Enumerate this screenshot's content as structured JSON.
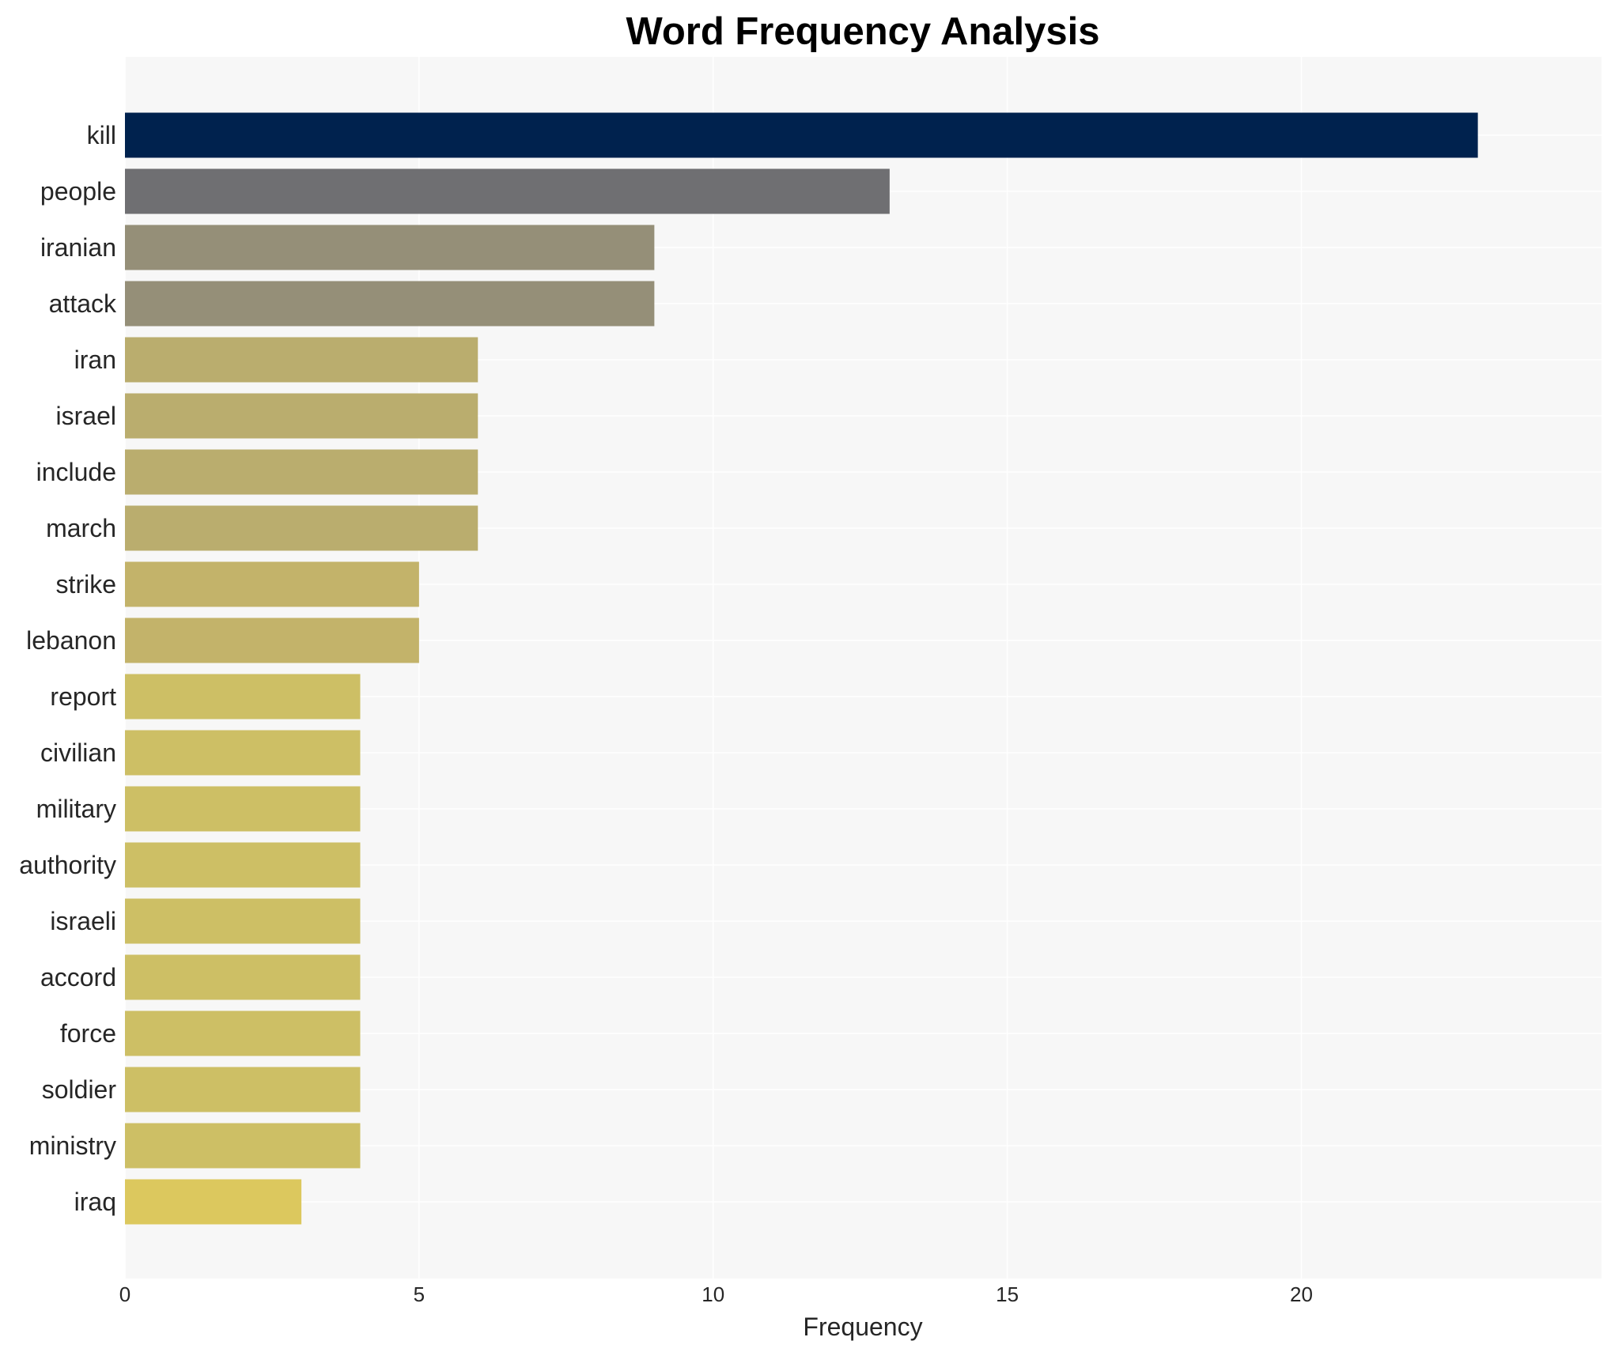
{
  "chart_data": {
    "type": "bar",
    "orientation": "horizontal",
    "title": "Word Frequency Analysis",
    "xlabel": "Frequency",
    "ylabel": "",
    "xlim": [
      0,
      24
    ],
    "xticks": [
      0,
      5,
      10,
      15,
      20
    ],
    "grid": true,
    "legend": "none",
    "categories": [
      "kill",
      "people",
      "iranian",
      "attack",
      "iran",
      "israel",
      "include",
      "march",
      "strike",
      "lebanon",
      "report",
      "civilian",
      "military",
      "authority",
      "israeli",
      "accord",
      "force",
      "soldier",
      "ministry",
      "iraq"
    ],
    "values": [
      23,
      13,
      9,
      9,
      6,
      6,
      6,
      6,
      5,
      5,
      4,
      4,
      4,
      4,
      4,
      4,
      4,
      4,
      4,
      3
    ],
    "colors": [
      "#00224e",
      "#6f6f72",
      "#958f78",
      "#958f78",
      "#baad6e",
      "#baad6e",
      "#baad6e",
      "#baad6e",
      "#c3b36a",
      "#c3b36a",
      "#cdbf65",
      "#cdbf65",
      "#cdbf65",
      "#cdbf65",
      "#cdbf65",
      "#cdbf65",
      "#cdbf65",
      "#cdbf65",
      "#cdbf65",
      "#dcc85e"
    ],
    "background": "#f7f7f7"
  }
}
